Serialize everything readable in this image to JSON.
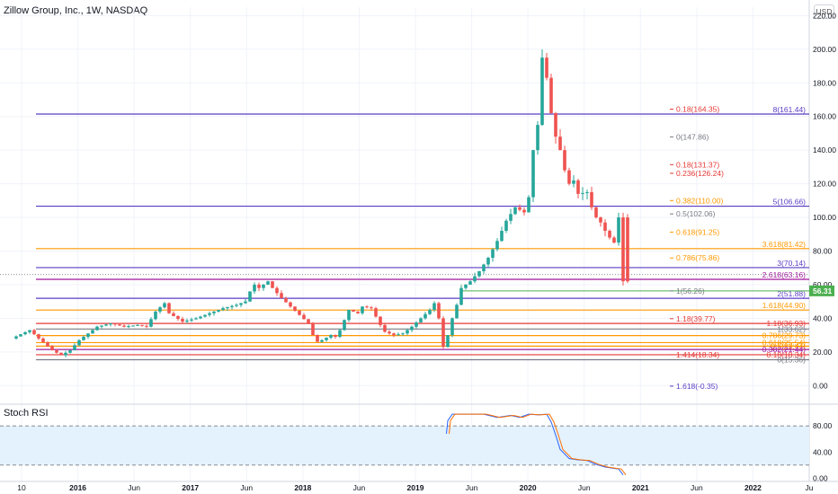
{
  "header": {
    "title": "Zillow Group, Inc., 1W, NASDAQ",
    "currency": "USD",
    "indicator_title": "Stoch RSI"
  },
  "colors": {
    "up": "#26a69a",
    "down": "#ef5350",
    "bg": "#ffffff",
    "purple": "#5b3cc4",
    "orange": "#ff9800",
    "magenta": "#a0169b",
    "red": "#e53935",
    "gray": "#787b86",
    "green_line": "#4caf50",
    "rsi_k": "#2962ff",
    "rsi_d": "#ff6d00",
    "rsi_band": "#e3f2fd"
  },
  "chart_data": [
    {
      "type": "candlestick",
      "title": "Zillow Group, Inc., 1W, NASDAQ",
      "ylim": [
        -10,
        225
      ],
      "y_ticks": [
        "220.00",
        "200.00",
        "180.00",
        "160.00",
        "140.00",
        "120.00",
        "100.00",
        "80.00",
        "60.00",
        "40.00",
        "20.00",
        "0.00"
      ],
      "x_ticks": [
        "10",
        "2016",
        "Jun",
        "2017",
        "Jun",
        "2018",
        "Jun",
        "2019",
        "Jun",
        "2020",
        "Jun",
        "2021",
        "Jun",
        "2022",
        "Ju"
      ],
      "last_price": "56.31",
      "price_path": [
        [
          0,
          28
        ],
        [
          4,
          33
        ],
        [
          6,
          28
        ],
        [
          9,
          21
        ],
        [
          11,
          18
        ],
        [
          13,
          21
        ],
        [
          15,
          27
        ],
        [
          17,
          31
        ],
        [
          19,
          35
        ],
        [
          22,
          37
        ],
        [
          25,
          35
        ],
        [
          28,
          36
        ],
        [
          30,
          35
        ],
        [
          32,
          44
        ],
        [
          34,
          49
        ],
        [
          35,
          43
        ],
        [
          38,
          38
        ],
        [
          41,
          40
        ],
        [
          44,
          43
        ],
        [
          47,
          46
        ],
        [
          50,
          48
        ],
        [
          52,
          50
        ],
        [
          53,
          56
        ],
        [
          54,
          60
        ],
        [
          55,
          58
        ],
        [
          57,
          62
        ],
        [
          58,
          58
        ],
        [
          60,
          52
        ],
        [
          62,
          47
        ],
        [
          64,
          42
        ],
        [
          66,
          37
        ],
        [
          67,
          30
        ],
        [
          68,
          26
        ],
        [
          69,
          27
        ],
        [
          71,
          30
        ],
        [
          72,
          29
        ],
        [
          73,
          33
        ],
        [
          75,
          45
        ],
        [
          77,
          43
        ],
        [
          78,
          47
        ],
        [
          80,
          46
        ],
        [
          82,
          36
        ],
        [
          83,
          32
        ],
        [
          85,
          30
        ],
        [
          87,
          31
        ],
        [
          89,
          35
        ],
        [
          91,
          40
        ],
        [
          93,
          45
        ],
        [
          94,
          49
        ],
        [
          95,
          40
        ],
        [
          95.5,
          20
        ],
        [
          96,
          23
        ],
        [
          97,
          30
        ],
        [
          98,
          40
        ],
        [
          99,
          48
        ],
        [
          100,
          58
        ],
        [
          102,
          62
        ],
        [
          104,
          68
        ],
        [
          106,
          76
        ],
        [
          108,
          86
        ],
        [
          110,
          98
        ],
        [
          112,
          106
        ],
        [
          114,
          103
        ],
        [
          115,
          112
        ],
        [
          116,
          140
        ],
        [
          117,
          155
        ],
        [
          117.5,
          160
        ],
        [
          118,
          195
        ],
        [
          118.5,
          207
        ],
        [
          119,
          183
        ],
        [
          120,
          162
        ],
        [
          121,
          148
        ],
        [
          122,
          140
        ],
        [
          123,
          128
        ],
        [
          124,
          120
        ],
        [
          125,
          122
        ],
        [
          126,
          114
        ],
        [
          128,
          115
        ],
        [
          129,
          106
        ],
        [
          130,
          100
        ],
        [
          131,
          97
        ],
        [
          132,
          92
        ],
        [
          133,
          88
        ],
        [
          134,
          85
        ],
        [
          135,
          100
        ],
        [
          135.5,
          95
        ],
        [
          136,
          62
        ]
      ],
      "rsi_path": [
        [
          95.7,
          68
        ],
        [
          96,
          88
        ],
        [
          97,
          98
        ],
        [
          100,
          98
        ],
        [
          104,
          98
        ],
        [
          107,
          93
        ],
        [
          110,
          96
        ],
        [
          112,
          93
        ],
        [
          114,
          98
        ],
        [
          116,
          97
        ],
        [
          118,
          98
        ],
        [
          119,
          86
        ],
        [
          120,
          66
        ],
        [
          121,
          44
        ],
        [
          123,
          30
        ],
        [
          125,
          28
        ],
        [
          127,
          27
        ],
        [
          129,
          21
        ],
        [
          131,
          17
        ],
        [
          133,
          15
        ],
        [
          134,
          14
        ],
        [
          135,
          5
        ]
      ],
      "rsi_ylim": [
        -5,
        105
      ],
      "rsi_ticks": [
        "80.00",
        "40.00",
        "0.00"
      ],
      "rsi_dashed_levels": [
        80,
        20
      ],
      "levels": [
        {
          "y": 161.44,
          "color": "#5b3cc4",
          "label": "8(161.44)",
          "label_side": "right",
          "start": 0.04
        },
        {
          "y": 106.66,
          "color": "#5b3cc4",
          "label": "5(106.66)",
          "label_side": "right",
          "start": 0.04
        },
        {
          "y": 81.42,
          "color": "#ff9800",
          "label": "3.618(81.42)",
          "label_side": "right",
          "start": 0.04
        },
        {
          "y": 70.14,
          "color": "#5b3cc4",
          "label": "3(70.14)",
          "label_side": "right",
          "start": 0.04
        },
        {
          "y": 63.16,
          "color": "#a0169b",
          "label": "2.618(63.16)",
          "label_side": "right",
          "start": 0.04
        },
        {
          "y": 51.88,
          "color": "#5b3cc4",
          "label": "2(51.88)",
          "label_side": "right",
          "start": 0.04
        },
        {
          "y": 44.9,
          "color": "#ff9800",
          "label": "1.618(44.90)",
          "label_side": "right",
          "start": 0.04
        },
        {
          "y": 36.93,
          "color": "#e53935",
          "label": "",
          "label_side": "right",
          "start": 0.04
        },
        {
          "y": 33.62,
          "color": "#787b86",
          "label": "",
          "label_side": "right",
          "start": 0.04
        },
        {
          "y": 29.73,
          "color": "#ff9800",
          "label": "",
          "label_side": "right",
          "start": 0.04
        },
        {
          "y": 25.54,
          "color": "#ff9800",
          "label": "",
          "label_side": "right",
          "start": 0.04
        },
        {
          "y": 23.44,
          "color": "#ff9800",
          "label": "",
          "label_side": "right",
          "start": 0.04
        },
        {
          "y": 21.44,
          "color": "#a0169b",
          "label": "",
          "label_side": "right",
          "start": 0.04
        },
        {
          "y": 18.34,
          "color": "#e53935",
          "label": "",
          "label_side": "right",
          "start": 0.04
        },
        {
          "y": 15.36,
          "color": "#787b86",
          "label": "",
          "label_side": "right",
          "start": 0.04
        }
      ],
      "right_labels": [
        {
          "y": 36.93,
          "text": "1.18(36.93)",
          "color": "#e53935"
        },
        {
          "y": 33.62,
          "text": "1(33.62)",
          "color": "#787b86"
        },
        {
          "y": 29.73,
          "text": "0.786(29.73)",
          "color": "#ff9800"
        },
        {
          "y": 25.54,
          "text": "0.618(25.54)",
          "color": "#ff9800"
        },
        {
          "y": 23.44,
          "text": "0.5(23.44)",
          "color": "#ff9800"
        },
        {
          "y": 21.44,
          "text": "0.382(21.44)",
          "color": "#a0169b"
        },
        {
          "y": 18.34,
          "text": "0.18(18.34)",
          "color": "#e53935"
        },
        {
          "y": 15.36,
          "text": "0(15.36)",
          "color": "#787b86"
        }
      ],
      "fib_mid_labels": [
        {
          "y": 164.35,
          "text": "0.18(164.35)",
          "color": "#e53935"
        },
        {
          "y": 147.86,
          "text": "0(147.86)",
          "color": "#787b86"
        },
        {
          "y": 131.37,
          "text": "0.18(131.37)",
          "color": "#e53935"
        },
        {
          "y": 126.24,
          "text": "0.236(126.24)",
          "color": "#e53935"
        },
        {
          "y": 110.0,
          "text": "0.382(110.00)",
          "color": "#ff9800"
        },
        {
          "y": 102.06,
          "text": "0.5(102.06)",
          "color": "#787b86"
        },
        {
          "y": 91.25,
          "text": "0.618(91.25)",
          "color": "#ff9800"
        },
        {
          "y": 75.86,
          "text": "0.786(75.86)",
          "color": "#ff9800"
        },
        {
          "y": 56.26,
          "text": "1(56.26)",
          "color": "#787b86"
        },
        {
          "y": 39.77,
          "text": "1.18(39.77)",
          "color": "#e53935"
        },
        {
          "y": 18.34,
          "text": "1.414(18.34)",
          "color": "#e53935"
        },
        {
          "y": -0.35,
          "text": "1.618(-0.35)",
          "color": "#5b3cc4"
        }
      ],
      "dotted_price_line": 66
    }
  ]
}
